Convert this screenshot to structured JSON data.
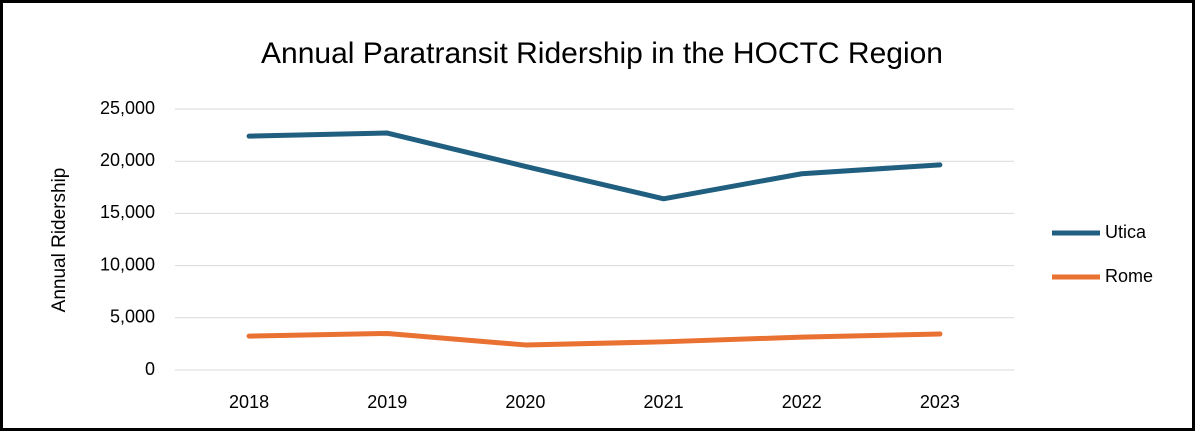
{
  "chart_data": {
    "type": "line",
    "title": "Annual Paratransit Ridership in the HOCTC Region",
    "y_label": "Annual Ridership",
    "categories": [
      "2018",
      "2019",
      "2020",
      "2021",
      "2022",
      "2023"
    ],
    "series": [
      {
        "name": "Utica",
        "color": "#215f80",
        "values": [
          22400,
          22700,
          19500,
          16400,
          18800,
          19650
        ]
      },
      {
        "name": "Rome",
        "color": "#e97132",
        "values": [
          3250,
          3500,
          2400,
          2700,
          3150,
          3450
        ]
      }
    ],
    "ylim": [
      0,
      25000
    ],
    "yticks": [
      0,
      {
        "value": 5000,
        "label": "5,000"
      },
      {
        "value": 10000,
        "label": "10,000"
      },
      {
        "value": 15000,
        "label": "15,000"
      },
      {
        "value": 20000,
        "label": "20,000"
      },
      {
        "value": 25000,
        "label": "25,000"
      }
    ],
    "grid": true,
    "legend": "right"
  }
}
